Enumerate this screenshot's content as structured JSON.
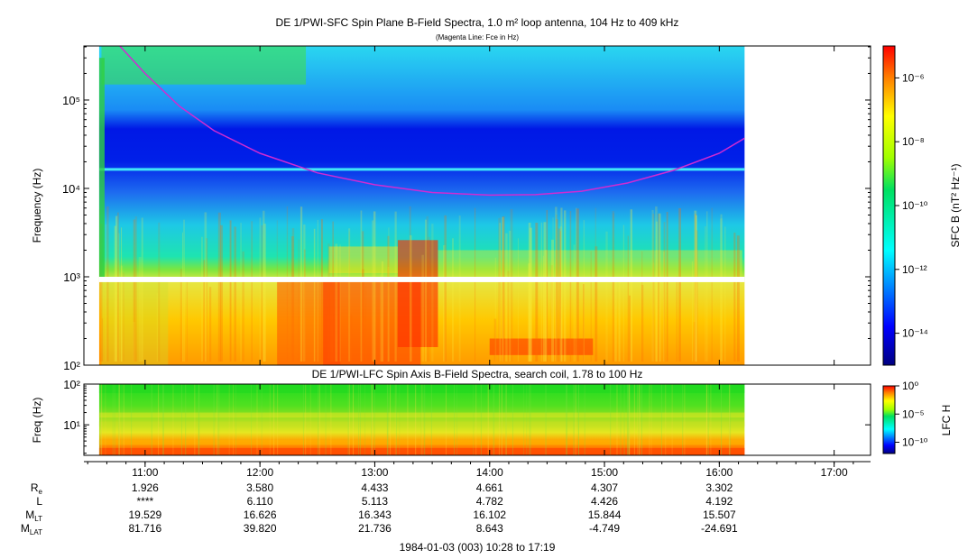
{
  "chart_data": [
    {
      "type": "heatmap",
      "title": "DE 1/PWI-SFC  Spin Plane B-Field Spectra, 1.0 m² loop antenna, 104 Hz to 409 kHz",
      "subtitle": "(Magenta Line: Fce in Hz)",
      "ylabel": "Frequency (Hz)",
      "yscale": "log",
      "ylim": [
        100,
        409000
      ],
      "y_ticks": [
        {
          "value": 100,
          "label": "10²"
        },
        {
          "value": 1000,
          "label": "10³"
        },
        {
          "value": 10000,
          "label": "10⁴"
        },
        {
          "value": 100000,
          "label": "10⁵"
        }
      ],
      "colorbar": {
        "label": "SFC B (nT² Hz⁻¹)",
        "scale": "log",
        "range": [
          1e-15,
          1e-05
        ],
        "ticks": [
          {
            "value": 1e-06,
            "label": "10⁻⁶"
          },
          {
            "value": 1e-08,
            "label": "10⁻⁸"
          },
          {
            "value": 1e-10,
            "label": "10⁻¹⁰"
          },
          {
            "value": 1e-12,
            "label": "10⁻¹²"
          },
          {
            "value": 1e-14,
            "label": "10⁻¹⁴"
          }
        ]
      },
      "data_span_hours": [
        10.6,
        16.22
      ],
      "fce_line": {
        "color": "#d02bd2",
        "x": [
          10.78,
          11.0,
          11.3,
          11.6,
          12.0,
          12.5,
          13.0,
          13.5,
          14.0,
          14.4,
          14.8,
          15.2,
          15.6,
          16.0,
          16.22
        ],
        "y": [
          409000,
          200000,
          85000,
          45000,
          25000,
          15000,
          11000,
          9000,
          8400,
          8500,
          9300,
          11500,
          16000,
          25000,
          37000
        ]
      }
    },
    {
      "type": "heatmap",
      "title": "DE 1/PWI-LFC  Spin Axis B-Field Spectra, search coil, 1.78 to 100 Hz",
      "ylabel": "Freq (Hz)",
      "yscale": "log",
      "ylim": [
        1.78,
        100
      ],
      "y_ticks": [
        {
          "value": 10,
          "label": "10¹"
        },
        {
          "value": 100,
          "label": "10²"
        }
      ],
      "colorbar": {
        "label": "LFC H",
        "scale": "log",
        "range": [
          1e-12,
          1
        ],
        "ticks": [
          {
            "value": 1,
            "label": "10⁰"
          },
          {
            "value": 1e-05,
            "label": "10⁻⁵"
          },
          {
            "value": 1e-10,
            "label": "10⁻¹⁰"
          }
        ]
      },
      "data_span_hours": [
        10.6,
        16.22
      ]
    }
  ],
  "x_axis": {
    "range_hours": [
      10.467,
      17.317
    ],
    "ticks": [
      {
        "value": 11,
        "label": "11:00"
      },
      {
        "value": 12,
        "label": "12:00"
      },
      {
        "value": 13,
        "label": "13:00"
      },
      {
        "value": 14,
        "label": "14:00"
      },
      {
        "value": 15,
        "label": "15:00"
      },
      {
        "value": 16,
        "label": "16:00"
      },
      {
        "value": 17,
        "label": "17:00"
      }
    ],
    "caption": "1984-01-03 (003) 10:28 to 17:19"
  },
  "ephemeris": [
    {
      "name": "R",
      "sub": "e",
      "values": [
        "1.926",
        "3.580",
        "4.433",
        "4.661",
        "4.307",
        "3.302"
      ]
    },
    {
      "name": "L",
      "sub": "",
      "values": [
        "****",
        "6.110",
        "5.113",
        "4.782",
        "4.426",
        "4.192"
      ]
    },
    {
      "name": "M",
      "sub": "LT",
      "values": [
        "19.529",
        "16.626",
        "16.343",
        "16.102",
        "15.844",
        "15.507"
      ]
    },
    {
      "name": "M",
      "sub": "LAT",
      "values": [
        "81.716",
        "39.820",
        "21.736",
        "8.643",
        "-4.749",
        "-24.691"
      ]
    }
  ]
}
